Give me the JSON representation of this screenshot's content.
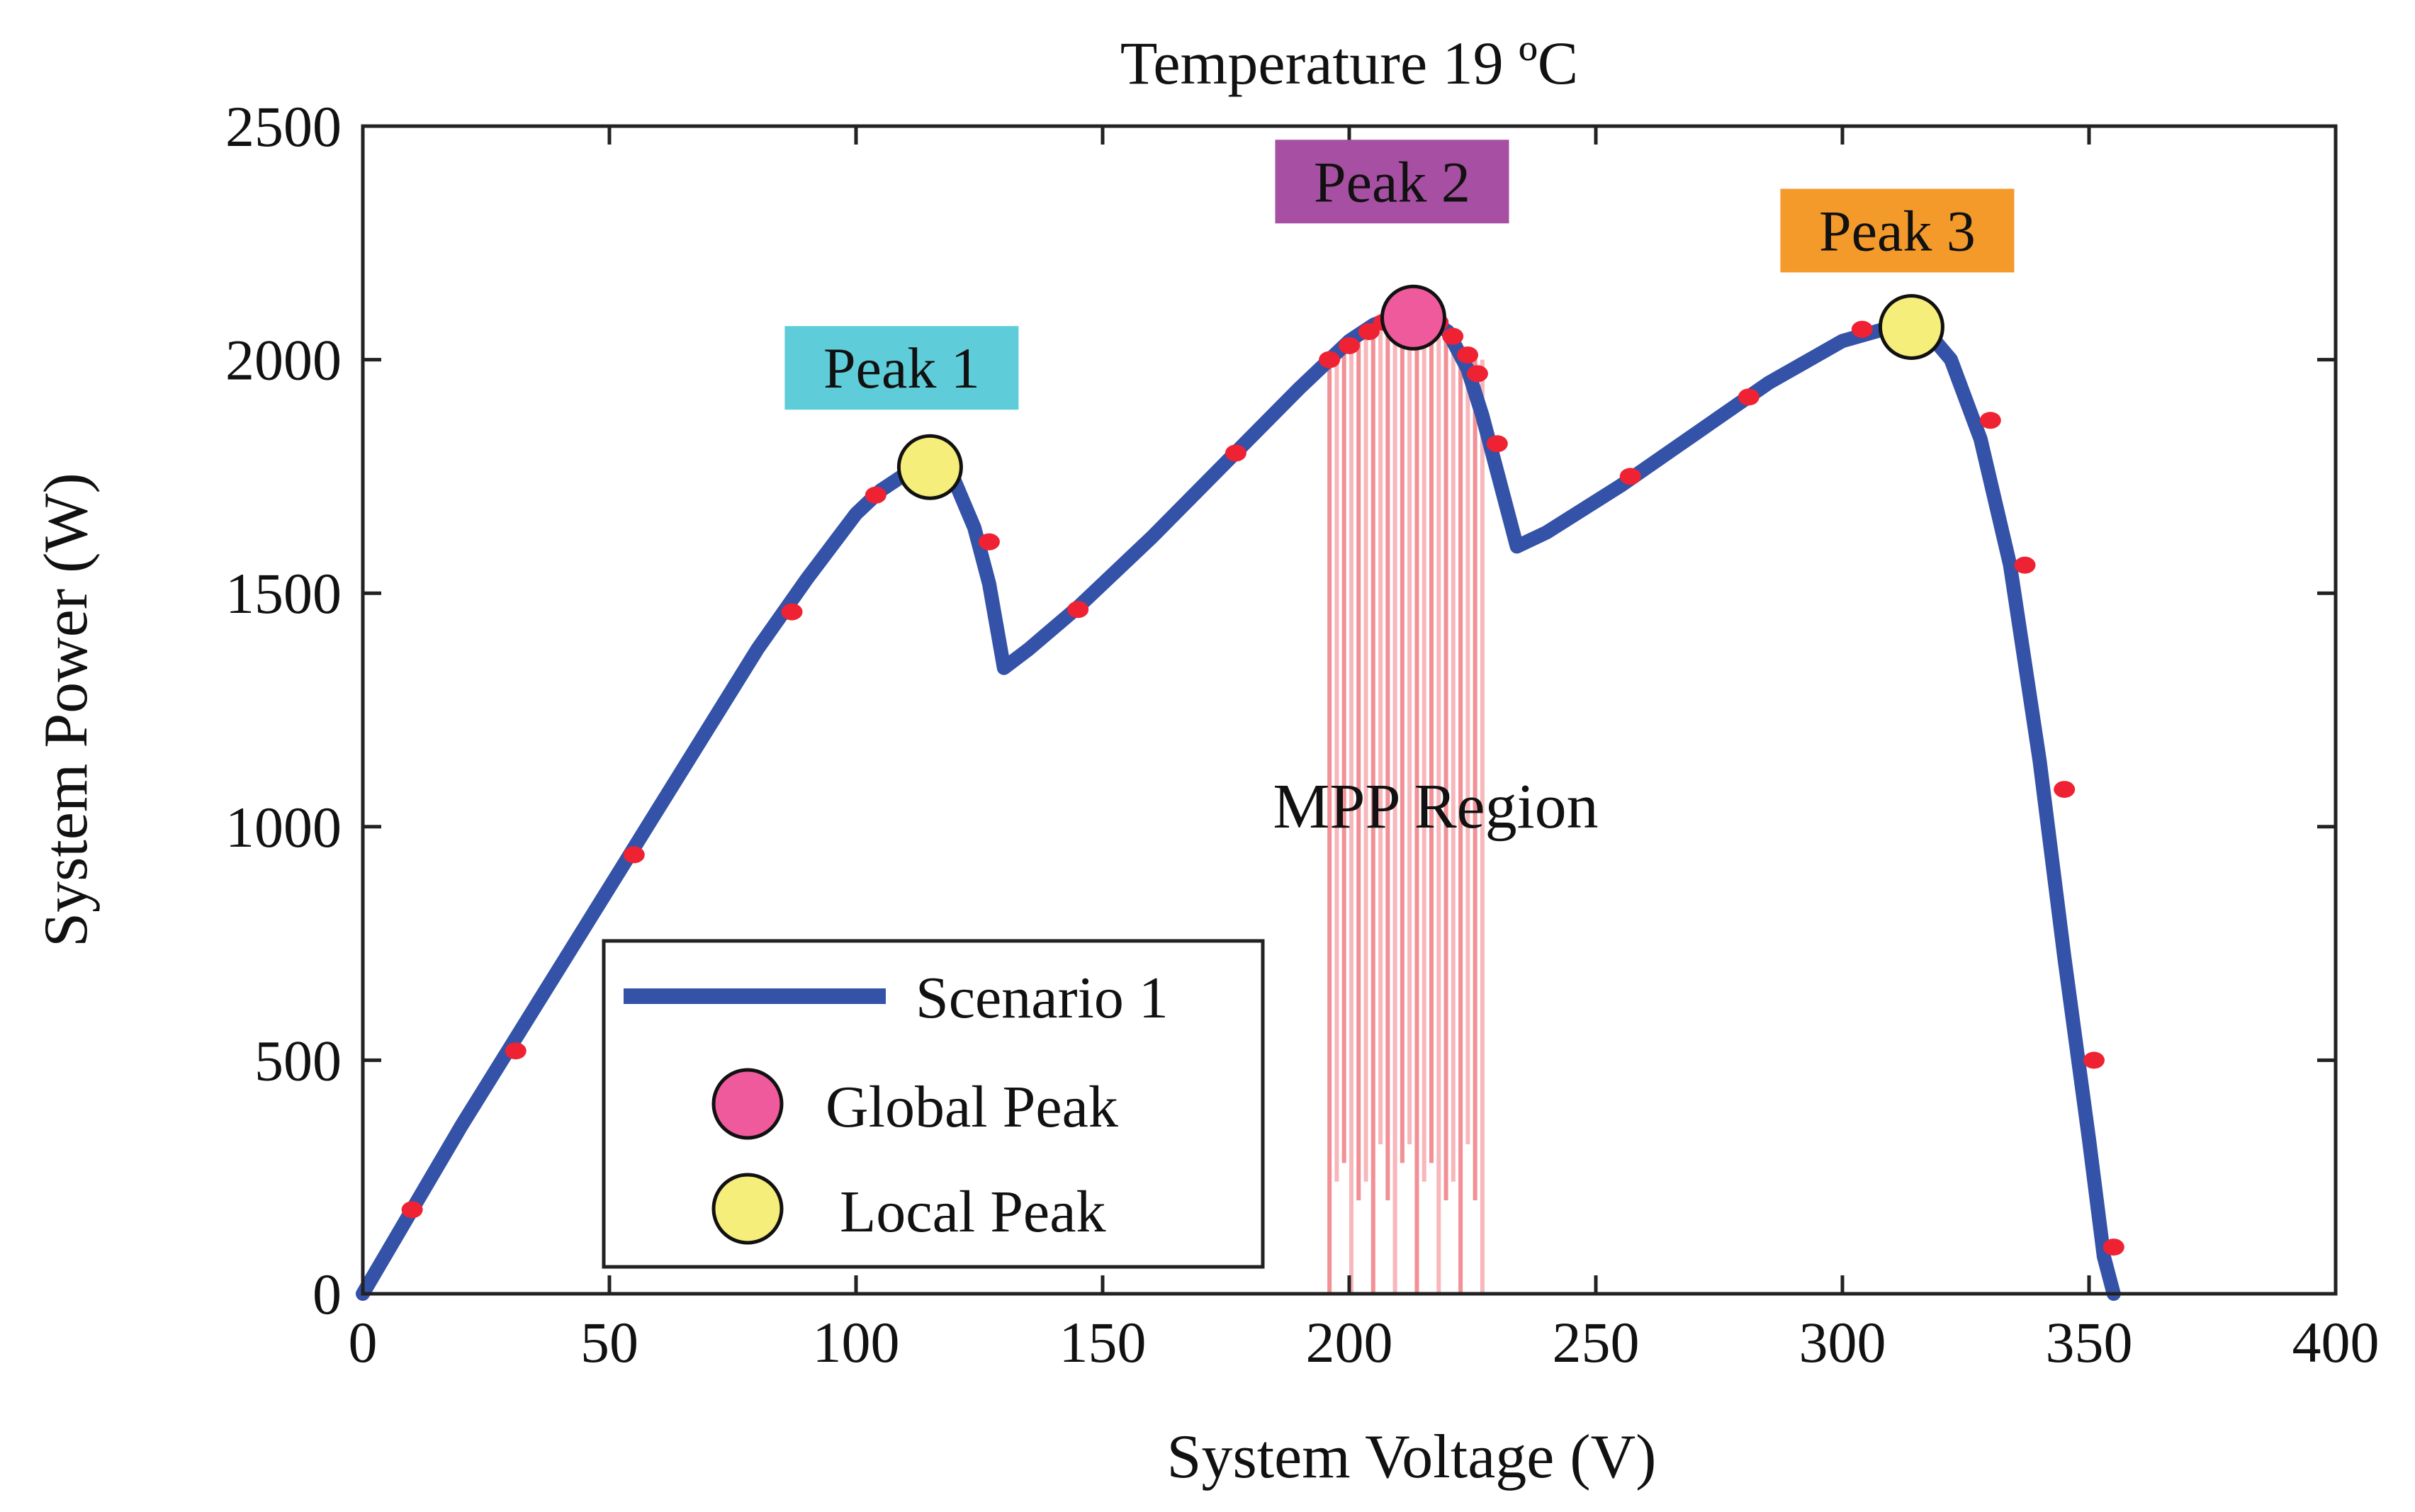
{
  "chart_data": {
    "type": "line",
    "title": "Temperature 19 ºC",
    "xlabel": "System Voltage (V)",
    "ylabel": "System Power (W)",
    "xlim": [
      0,
      400
    ],
    "ylim": [
      0,
      2500
    ],
    "xticks": [
      0,
      50,
      100,
      150,
      200,
      250,
      300,
      350,
      400
    ],
    "yticks": [
      0,
      500,
      1000,
      1500,
      2000,
      2500
    ],
    "grid": false,
    "legend_position": "bottom-left",
    "series": [
      {
        "name": "Scenario 1",
        "color": "#3452a8",
        "x": [
          0,
          10,
          20,
          30,
          40,
          50,
          60,
          70,
          80,
          90,
          100,
          105,
          110,
          115,
          120,
          124,
          127,
          130,
          135,
          145,
          160,
          175,
          190,
          200,
          205,
          210,
          215,
          220,
          224,
          227,
          230,
          234,
          240,
          255,
          270,
          285,
          300,
          310,
          316,
          322,
          328,
          334,
          340,
          345,
          350,
          353,
          355
        ],
        "y": [
          0,
          180,
          360,
          530,
          700,
          870,
          1040,
          1210,
          1380,
          1530,
          1670,
          1720,
          1755,
          1770,
          1740,
          1640,
          1520,
          1340,
          1380,
          1470,
          1620,
          1780,
          1940,
          2040,
          2075,
          2095,
          2095,
          2060,
          1980,
          1880,
          1760,
          1600,
          1630,
          1730,
          1840,
          1950,
          2040,
          2070,
          2075,
          2000,
          1830,
          1560,
          1140,
          720,
          330,
          80,
          0
        ]
      }
    ],
    "marker_points": {
      "color": "#ee2233",
      "x": [
        10,
        31,
        55,
        87,
        104,
        127,
        145,
        177,
        196,
        200,
        204,
        207,
        210,
        218,
        221,
        224,
        226,
        230,
        257,
        281,
        304,
        330,
        337,
        345,
        351,
        355
      ],
      "y": [
        180,
        520,
        940,
        1460,
        1710,
        1610,
        1465,
        1800,
        2000,
        2030,
        2060,
        2080,
        2090,
        2080,
        2050,
        2010,
        1970,
        1820,
        1750,
        1920,
        2065,
        1870,
        1560,
        1080,
        500,
        100
      ]
    },
    "peaks": [
      {
        "label": "Peak 1",
        "x": 115,
        "y": 1770,
        "kind": "Local Peak",
        "label_color": "#5ecdd9"
      },
      {
        "label": "Peak 2",
        "x": 213,
        "y": 2090,
        "kind": "Global Peak",
        "label_color": "#a74fa3"
      },
      {
        "label": "Peak 3",
        "x": 314,
        "y": 2070,
        "kind": "Local Peak",
        "label_color": "#f39a2b"
      }
    ],
    "mpp_region": {
      "label": "MPP Region",
      "x_range": [
        196,
        227
      ],
      "color": "#f07c84"
    },
    "legend": [
      {
        "label": "Scenario 1",
        "symbol": "line",
        "color": "#3452a8"
      },
      {
        "label": "Global Peak",
        "symbol": "circle",
        "color": "#ee5a9b"
      },
      {
        "label": "Local Peak",
        "symbol": "circle",
        "color": "#f5ee7a"
      }
    ]
  }
}
